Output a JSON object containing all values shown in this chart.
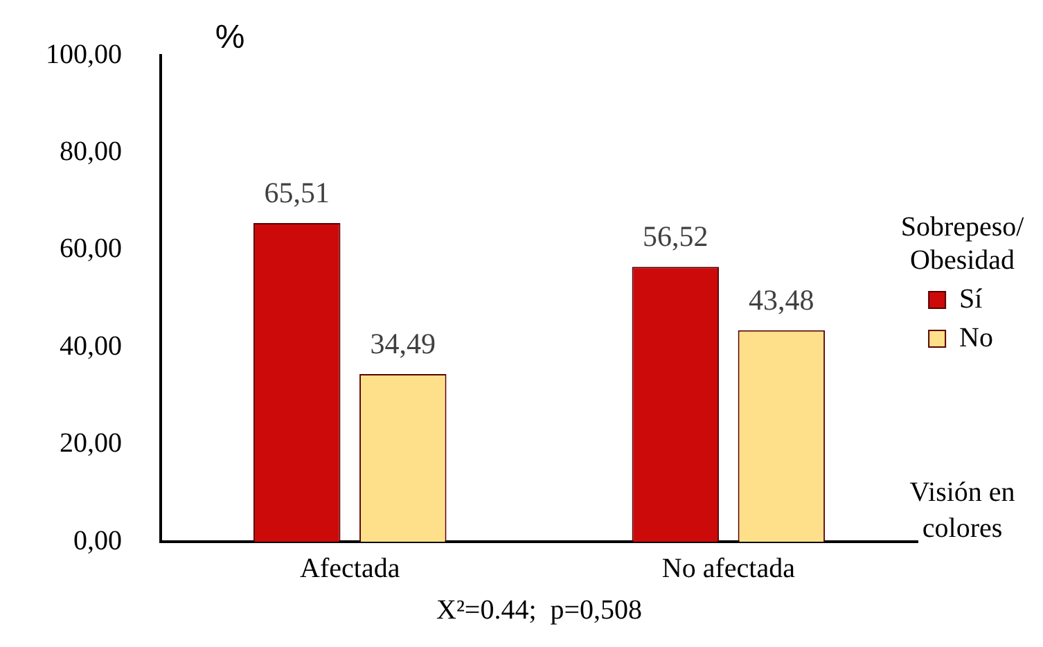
{
  "chart_data": {
    "type": "bar",
    "ylabel": "%",
    "xlabel": "Visión en colores",
    "legend_title": "Sobrepeso/ Obesidad",
    "categories": [
      "Afectada",
      "No afectada"
    ],
    "series": [
      {
        "name": "Sí",
        "color": "#cc0a0a",
        "values": [
          65.51,
          56.52
        ],
        "value_labels": [
          "65,51",
          "56,52"
        ]
      },
      {
        "name": "No",
        "color": "#ffe08a",
        "values": [
          34.49,
          43.48
        ],
        "value_labels": [
          "34,49",
          "43,48"
        ]
      }
    ],
    "ylim": [
      0,
      100
    ],
    "yticks": [
      {
        "value": 0,
        "label": "0,00"
      },
      {
        "value": 20,
        "label": "20,00"
      },
      {
        "value": 40,
        "label": "40,00"
      },
      {
        "value": 60,
        "label": "60,00"
      },
      {
        "value": 80,
        "label": "80,00"
      },
      {
        "value": 100,
        "label": "100,00"
      }
    ],
    "grid": false,
    "legend": "right",
    "annotations": [
      "X²=0.44;  p=0,508"
    ]
  }
}
